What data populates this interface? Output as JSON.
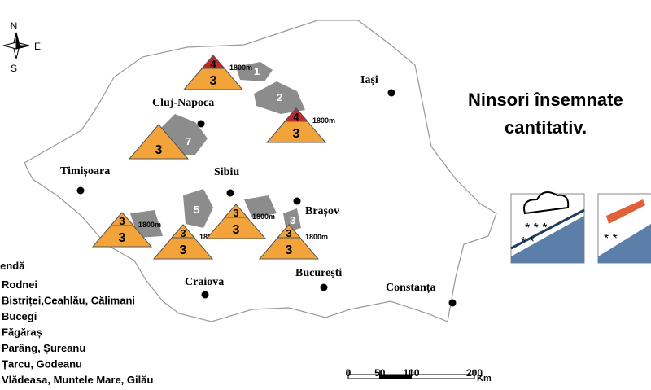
{
  "title": [
    "Ninsori însemnate",
    "cantitativ."
  ],
  "compass": {
    "north": "N",
    "east": "E",
    "south": "S"
  },
  "cities": [
    "Iași",
    "Cluj-Napoca",
    "Timișoara",
    "Sibiu",
    "Brașov",
    "Craiova",
    "București",
    "Constanța"
  ],
  "regions": [
    1,
    2,
    7,
    5,
    3
  ],
  "danger": [
    {
      "upper": 4,
      "lower": 3,
      "altitude": "1800m"
    },
    {
      "upper": 4,
      "lower": 3,
      "altitude": "1800m"
    },
    {
      "lower": 3
    },
    {
      "upper": 3,
      "lower": 3,
      "altitude": "1800m"
    },
    {
      "upper": 3,
      "lower": 3,
      "altitude": "1800m"
    },
    {
      "upper": 3,
      "lower": 3,
      "altitude": "1800m"
    },
    {
      "upper": 3,
      "lower": 3,
      "altitude": "1800m"
    }
  ],
  "legend": {
    "title": "Legendă",
    "items": [
      "Rodnei",
      "Bistriței,Ceahlău, Călimani",
      "Bucegi",
      "Făgăraș",
      "Parâng, Șureanu",
      "Țarcu, Godeanu",
      "Vlădeasa, Muntele Mare, Gilău"
    ]
  },
  "scale": {
    "ticks": [
      0,
      50,
      100,
      200
    ],
    "unit": "Km"
  }
}
